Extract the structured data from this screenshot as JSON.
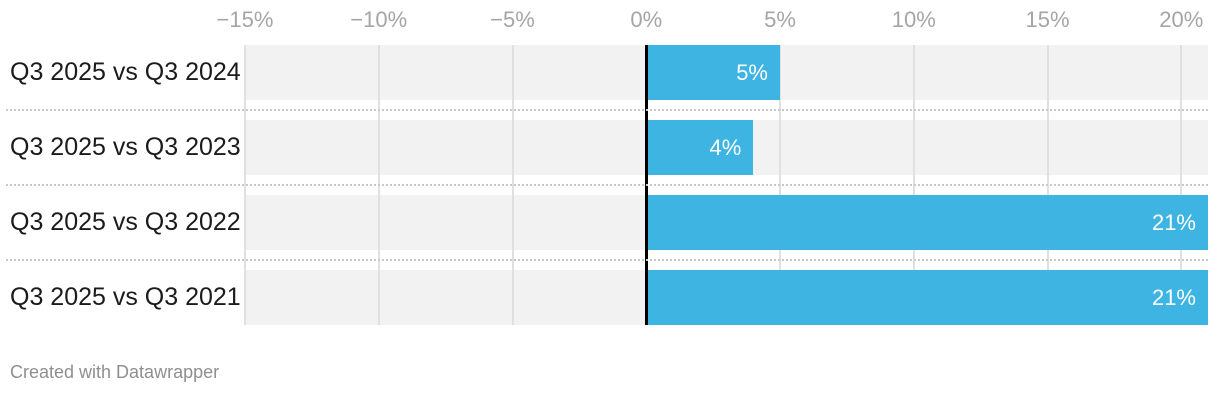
{
  "chart_data": {
    "type": "bar",
    "orientation": "horizontal",
    "title": "",
    "xlabel": "",
    "ylabel": "",
    "axis": {
      "min": -15,
      "max": 21,
      "unit": "%",
      "ticks": [
        {
          "value": -15,
          "label": "−15%"
        },
        {
          "value": -10,
          "label": "−10%"
        },
        {
          "value": -5,
          "label": "−5%"
        },
        {
          "value": 0,
          "label": "0%"
        },
        {
          "value": 5,
          "label": "5%"
        },
        {
          "value": 10,
          "label": "10%"
        },
        {
          "value": 15,
          "label": "15%"
        },
        {
          "value": 20,
          "label": "20%"
        }
      ]
    },
    "grid": true,
    "legend": "none",
    "categories": [
      "Q3 2025 vs Q3 2024",
      "Q3 2025 vs Q3 2023",
      "Q3 2025 vs Q3 2022",
      "Q3 2025 vs Q3 2021"
    ],
    "values": [
      5,
      4,
      21,
      21
    ],
    "rows": [
      {
        "label": "Q3 2025 vs Q3 2024",
        "value": 5,
        "value_label": "5%"
      },
      {
        "label": "Q3 2025 vs Q3 2023",
        "value": 4,
        "value_label": "4%"
      },
      {
        "label": "Q3 2025 vs Q3 2022",
        "value": 21,
        "value_label": "21%"
      },
      {
        "label": "Q3 2025 vs Q3 2021",
        "value": 21,
        "value_label": "21%"
      }
    ]
  },
  "footer": {
    "credit": "Created with Datawrapper"
  },
  "colors": {
    "bar": "#3eb4e2",
    "band": "#f2f2f2",
    "grid": "#e0e0e0",
    "zero": "#000000",
    "axis-text": "#a5a5a5",
    "label-text": "#1b1b1b",
    "bar-label": "#ffffff",
    "separator": "#c9c9c9",
    "footer-text": "#8f8f8f",
    "bg": "#ffffff"
  }
}
